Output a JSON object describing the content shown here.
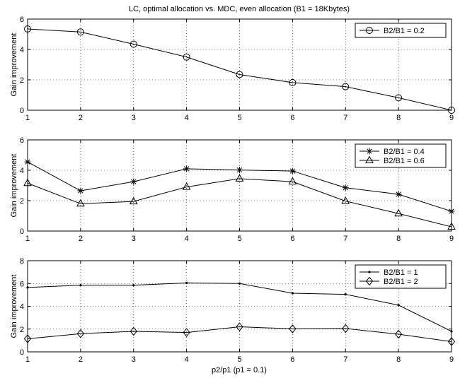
{
  "chart_data": [
    {
      "type": "line",
      "title": "LC, optimal allocation vs. MDC, even allocation (B1 = 18Kbytes)",
      "xlabel": "",
      "ylabel": "Gain improvement",
      "x": [
        1,
        2,
        3,
        4,
        5,
        6,
        7,
        8,
        9
      ],
      "xlim": [
        1,
        9
      ],
      "ylim": [
        0,
        6
      ],
      "xticks": [
        "1",
        "2",
        "3",
        "4",
        "5",
        "6",
        "7",
        "8",
        "9"
      ],
      "yticks": [
        "0",
        "2",
        "4",
        "6"
      ],
      "grid": true,
      "legend_position": "top-right",
      "series": [
        {
          "name": "B2/B1 = 0.2",
          "marker": "circle",
          "values": [
            5.35,
            5.15,
            4.35,
            3.5,
            2.35,
            1.82,
            1.55,
            0.82,
            0.0
          ]
        }
      ]
    },
    {
      "type": "line",
      "title": "",
      "xlabel": "",
      "ylabel": "Gain improvement",
      "x": [
        1,
        2,
        3,
        4,
        5,
        6,
        7,
        8,
        9
      ],
      "xlim": [
        1,
        9
      ],
      "ylim": [
        0,
        6
      ],
      "xticks": [
        "1",
        "2",
        "3",
        "4",
        "5",
        "6",
        "7",
        "8",
        "9"
      ],
      "yticks": [
        "0",
        "2",
        "4",
        "6"
      ],
      "grid": true,
      "legend_position": "top-right",
      "series": [
        {
          "name": "B2/B1 = 0.4",
          "marker": "star",
          "values": [
            4.55,
            2.65,
            3.25,
            4.1,
            4.02,
            3.95,
            2.85,
            2.42,
            1.3
          ]
        },
        {
          "name": "B2/B1 = 0.6",
          "marker": "triangle",
          "values": [
            3.15,
            1.8,
            1.95,
            2.9,
            3.45,
            3.25,
            1.97,
            1.15,
            0.28
          ]
        }
      ]
    },
    {
      "type": "line",
      "title": "",
      "xlabel": "p2/p1 (p1 = 0.1)",
      "ylabel": "Gain improvement",
      "x": [
        1,
        2,
        3,
        4,
        5,
        6,
        7,
        8,
        9
      ],
      "xlim": [
        1,
        9
      ],
      "ylim": [
        0,
        8
      ],
      "xticks": [
        "1",
        "2",
        "3",
        "4",
        "5",
        "6",
        "7",
        "8",
        "9"
      ],
      "yticks": [
        "0",
        "2",
        "4",
        "6",
        "8"
      ],
      "grid": true,
      "legend_position": "top-right",
      "series": [
        {
          "name": "B2/B1 = 1",
          "marker": "dot",
          "values": [
            5.65,
            5.85,
            5.85,
            6.05,
            6.0,
            5.15,
            5.05,
            4.1,
            1.8
          ]
        },
        {
          "name": "B2/B1 = 2",
          "marker": "diamond",
          "values": [
            1.15,
            1.6,
            1.8,
            1.7,
            2.2,
            2.02,
            2.05,
            1.55,
            0.9
          ]
        }
      ]
    }
  ]
}
